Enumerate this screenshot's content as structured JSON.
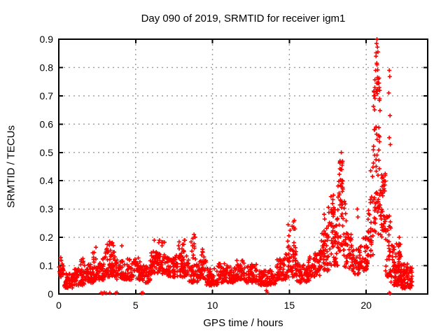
{
  "chart_data": {
    "type": "scatter",
    "title": "Day 090 of 2019, SRMTID for receiver igm1",
    "xlabel": "GPS time / hours",
    "ylabel": "SRMTID / TECUs",
    "series_name": "SRMTID",
    "xlim": [
      0,
      24
    ],
    "ylim": [
      0,
      0.9
    ],
    "xticks": [
      0,
      5,
      10,
      15,
      20
    ],
    "xtick_labels": [
      "0",
      "5",
      "10",
      "15",
      "20"
    ],
    "yticks": [
      0,
      0.1,
      0.2,
      0.3,
      0.4,
      0.5,
      0.6,
      0.7,
      0.8,
      0.9
    ],
    "ytick_labels": [
      "0",
      "0.1",
      "0.2",
      "0.3",
      "0.4",
      "0.5",
      "0.6",
      "0.7",
      "0.8",
      "0.9"
    ],
    "grid": "dashed-major",
    "legend": "none",
    "background": "#ffffff",
    "axis_color": "#000000",
    "grid_color": "#9a9a9a",
    "marker": {
      "glyph": "+",
      "color": "#ff0000",
      "size": 7
    },
    "seed": 20190901,
    "points_format": "[gps_hour, srmtid_tecu] explicit points read from plot (peaks, spikes, near-zero outliers)",
    "points": [
      [
        20.7,
        0.9
      ],
      [
        20.67,
        0.885
      ],
      [
        20.73,
        0.872
      ],
      [
        20.76,
        0.855
      ],
      [
        20.64,
        0.84
      ],
      [
        20.7,
        0.81
      ],
      [
        20.61,
        0.79
      ],
      [
        20.74,
        0.765
      ],
      [
        20.68,
        0.745
      ],
      [
        21.5,
        0.79
      ],
      [
        21.53,
        0.768
      ],
      [
        21.47,
        0.71
      ],
      [
        21.55,
        0.63
      ],
      [
        21.5,
        0.552
      ],
      [
        21.57,
        0.528
      ],
      [
        18.38,
        0.5
      ],
      [
        18.3,
        0.47
      ],
      [
        18.43,
        0.455
      ],
      [
        18.35,
        0.44
      ],
      [
        19.42,
        0.3
      ],
      [
        19.46,
        0.272
      ],
      [
        15.32,
        0.26
      ],
      [
        14.92,
        0.245
      ],
      [
        15.05,
        0.225
      ],
      [
        8.8,
        0.21
      ],
      [
        8.72,
        0.196
      ],
      [
        8.2,
        0.19
      ],
      [
        6.55,
        0.19
      ],
      [
        6.7,
        0.183
      ],
      [
        3.3,
        0.185
      ],
      [
        3.15,
        0.175
      ],
      [
        4.1,
        0.17
      ],
      [
        2.42,
        0.165
      ],
      [
        9.35,
        0.158
      ],
      [
        22.15,
        0.2
      ],
      [
        8.05,
        0.175
      ],
      [
        13.5,
        0.012
      ],
      [
        13.56,
        0.006
      ],
      [
        2.75,
        0.004
      ],
      [
        2.85,
        0.002
      ],
      [
        2.96,
        0.005
      ],
      [
        3.08,
        0.003
      ],
      [
        3.32,
        0.004
      ],
      [
        3.7,
        0.003
      ],
      [
        3.79,
        0.005
      ],
      [
        5.38,
        0.003
      ],
      [
        5.47,
        0.004
      ],
      [
        21.5,
        0.004
      ],
      [
        21.56,
        0.002
      ]
    ],
    "bands_format": "[t_start, t_end, y_min, y_max, count] dense scatter envelope read from plot",
    "bands": [
      [
        0.02,
        0.35,
        0.06,
        0.13,
        25
      ],
      [
        0.35,
        0.95,
        0.02,
        0.075,
        45
      ],
      [
        0.95,
        1.65,
        0.03,
        0.09,
        50
      ],
      [
        1.35,
        1.6,
        0.1,
        0.14,
        6
      ],
      [
        1.65,
        2.4,
        0.04,
        0.105,
        55
      ],
      [
        2.15,
        2.45,
        0.11,
        0.165,
        6
      ],
      [
        2.4,
        2.95,
        0.05,
        0.125,
        40
      ],
      [
        2.95,
        3.65,
        0.06,
        0.155,
        50
      ],
      [
        3.0,
        3.6,
        0.13,
        0.185,
        12
      ],
      [
        3.65,
        4.35,
        0.05,
        0.12,
        50
      ],
      [
        4.35,
        5.3,
        0.05,
        0.13,
        65
      ],
      [
        5.3,
        5.95,
        0.04,
        0.1,
        45
      ],
      [
        5.95,
        7.05,
        0.07,
        0.15,
        80
      ],
      [
        6.2,
        6.95,
        0.12,
        0.19,
        16
      ],
      [
        7.05,
        7.6,
        0.06,
        0.13,
        40
      ],
      [
        7.6,
        8.45,
        0.06,
        0.14,
        55
      ],
      [
        7.75,
        8.35,
        0.13,
        0.19,
        12
      ],
      [
        8.45,
        9.05,
        0.04,
        0.105,
        40
      ],
      [
        8.6,
        8.95,
        0.1,
        0.205,
        10
      ],
      [
        9.05,
        9.6,
        0.05,
        0.12,
        40
      ],
      [
        9.2,
        9.5,
        0.11,
        0.16,
        8
      ],
      [
        9.6,
        10.35,
        0.03,
        0.09,
        55
      ],
      [
        10.35,
        10.95,
        0.04,
        0.11,
        45
      ],
      [
        10.95,
        11.5,
        0.04,
        0.1,
        40
      ],
      [
        11.5,
        12.05,
        0.05,
        0.12,
        42
      ],
      [
        12.05,
        12.9,
        0.04,
        0.11,
        60
      ],
      [
        12.9,
        14.15,
        0.03,
        0.085,
        85
      ],
      [
        14.15,
        14.75,
        0.05,
        0.13,
        45
      ],
      [
        14.75,
        15.45,
        0.06,
        0.16,
        50
      ],
      [
        14.8,
        15.4,
        0.15,
        0.26,
        14
      ],
      [
        15.45,
        16.3,
        0.04,
        0.12,
        60
      ],
      [
        16.3,
        17.0,
        0.06,
        0.145,
        50
      ],
      [
        17.0,
        17.6,
        0.08,
        0.22,
        45
      ],
      [
        17.25,
        17.6,
        0.2,
        0.32,
        10
      ],
      [
        17.6,
        18.15,
        0.1,
        0.3,
        50
      ],
      [
        17.7,
        18.1,
        0.28,
        0.38,
        8
      ],
      [
        18.15,
        18.5,
        0.15,
        0.42,
        40
      ],
      [
        18.25,
        18.48,
        0.4,
        0.475,
        10
      ],
      [
        18.5,
        19.05,
        0.09,
        0.22,
        40
      ],
      [
        18.5,
        18.7,
        0.25,
        0.35,
        5
      ],
      [
        19.05,
        19.55,
        0.07,
        0.16,
        35
      ],
      [
        19.55,
        20.1,
        0.08,
        0.2,
        42
      ],
      [
        20.1,
        20.45,
        0.12,
        0.3,
        30
      ],
      [
        20.25,
        20.45,
        0.3,
        0.45,
        8
      ],
      [
        20.45,
        20.9,
        0.3,
        0.72,
        50
      ],
      [
        20.55,
        20.85,
        0.7,
        0.86,
        14
      ],
      [
        20.5,
        20.9,
        0.2,
        0.35,
        10
      ],
      [
        20.9,
        21.25,
        0.2,
        0.45,
        42
      ],
      [
        21.25,
        21.6,
        0.06,
        0.3,
        35
      ],
      [
        21.6,
        22.25,
        0.04,
        0.18,
        55
      ],
      [
        21.75,
        22.25,
        0.03,
        0.1,
        30
      ],
      [
        22.25,
        23.0,
        0.02,
        0.11,
        80
      ]
    ]
  }
}
